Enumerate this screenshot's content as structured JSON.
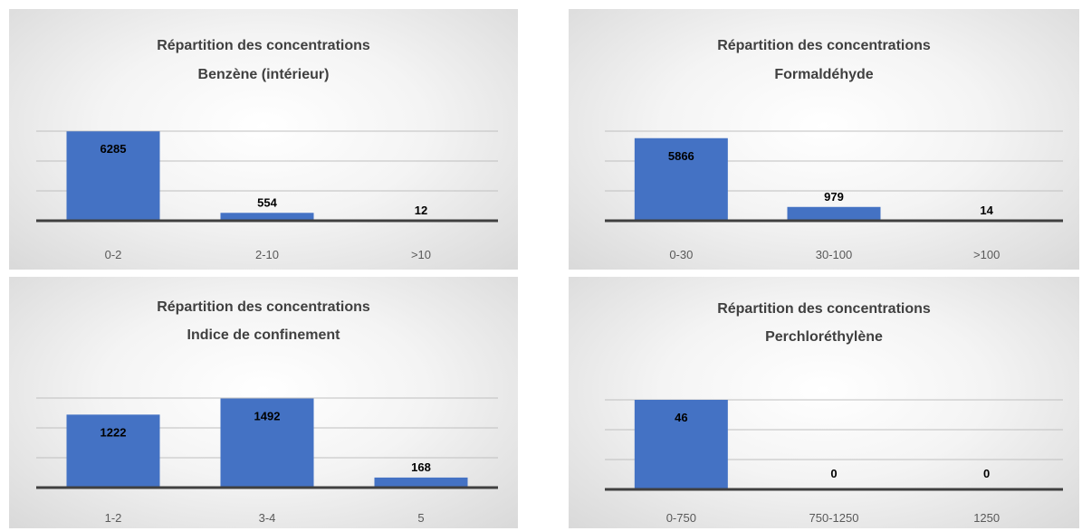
{
  "colors": {
    "bar": "#4472c4",
    "gridline": "#bfbfbf",
    "axis": "#404040",
    "title_text": "#404040",
    "label_text": "#000000",
    "tick_text": "#595959"
  },
  "chart_data": [
    {
      "type": "bar",
      "title_lines": [
        "Répartition des concentrations",
        "Benzène (intérieur)"
      ],
      "categories": [
        "0-2",
        "2-10",
        ">10"
      ],
      "values": [
        6285,
        554,
        12
      ],
      "value_labels": [
        "6285",
        "554",
        "12"
      ],
      "xlabel": "",
      "ylabel": "",
      "ylim": [
        0,
        6300
      ],
      "grid": true,
      "legend": "none"
    },
    {
      "type": "bar",
      "title_lines": [
        "Répartition des concentrations",
        "Formaldéhyde"
      ],
      "categories": [
        "0-30",
        "30-100",
        ">100"
      ],
      "values": [
        5866,
        979,
        14
      ],
      "value_labels": [
        "5866",
        "979",
        "14"
      ],
      "xlabel": "",
      "ylabel": "",
      "ylim": [
        0,
        6300
      ],
      "grid": true,
      "legend": "none"
    },
    {
      "type": "bar",
      "title_lines": [
        "Répartition des concentrations",
        "Indice de confinement"
      ],
      "categories": [
        "1-2",
        "3-4",
        "5"
      ],
      "values": [
        1222,
        1492,
        168
      ],
      "value_labels": [
        "1222",
        "1492",
        "168"
      ],
      "xlabel": "",
      "ylabel": "",
      "ylim": [
        0,
        1500
      ],
      "grid": true,
      "legend": "none"
    },
    {
      "type": "bar",
      "title_lines": [
        "Répartition des concentrations",
        "Perchloréthylène"
      ],
      "categories": [
        "0-750",
        "750-1250",
        "1250"
      ],
      "values": [
        46,
        0,
        0
      ],
      "value_labels": [
        "46",
        "0",
        "0"
      ],
      "xlabel": "",
      "ylabel": "",
      "ylim": [
        0,
        46
      ],
      "grid": true,
      "legend": "none"
    }
  ]
}
